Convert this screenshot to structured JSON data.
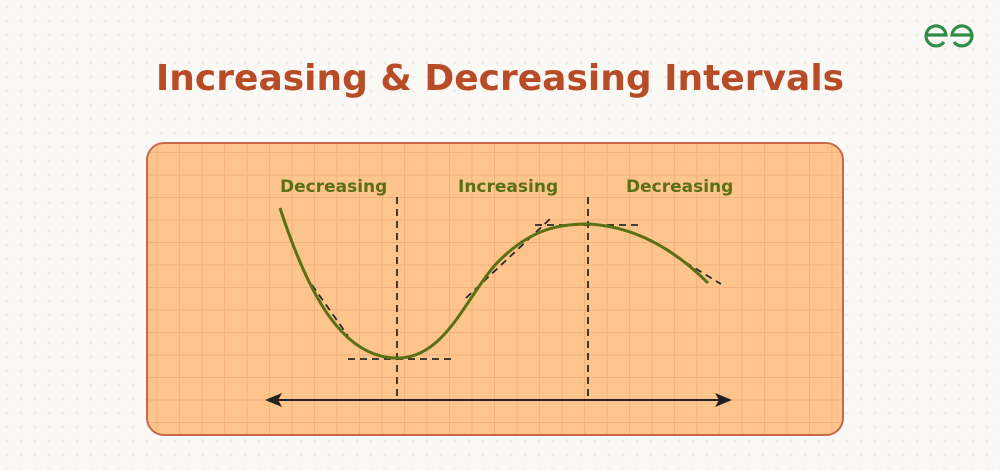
{
  "title": "Increasing & Decreasing Intervals",
  "labels": {
    "left": "Decreasing",
    "middle": "Increasing",
    "right": "Decreasing"
  },
  "colors": {
    "title": "#b84c27",
    "curve": "#5a7012",
    "panel": "#fdc48c",
    "logo": "#2f8d46"
  }
}
